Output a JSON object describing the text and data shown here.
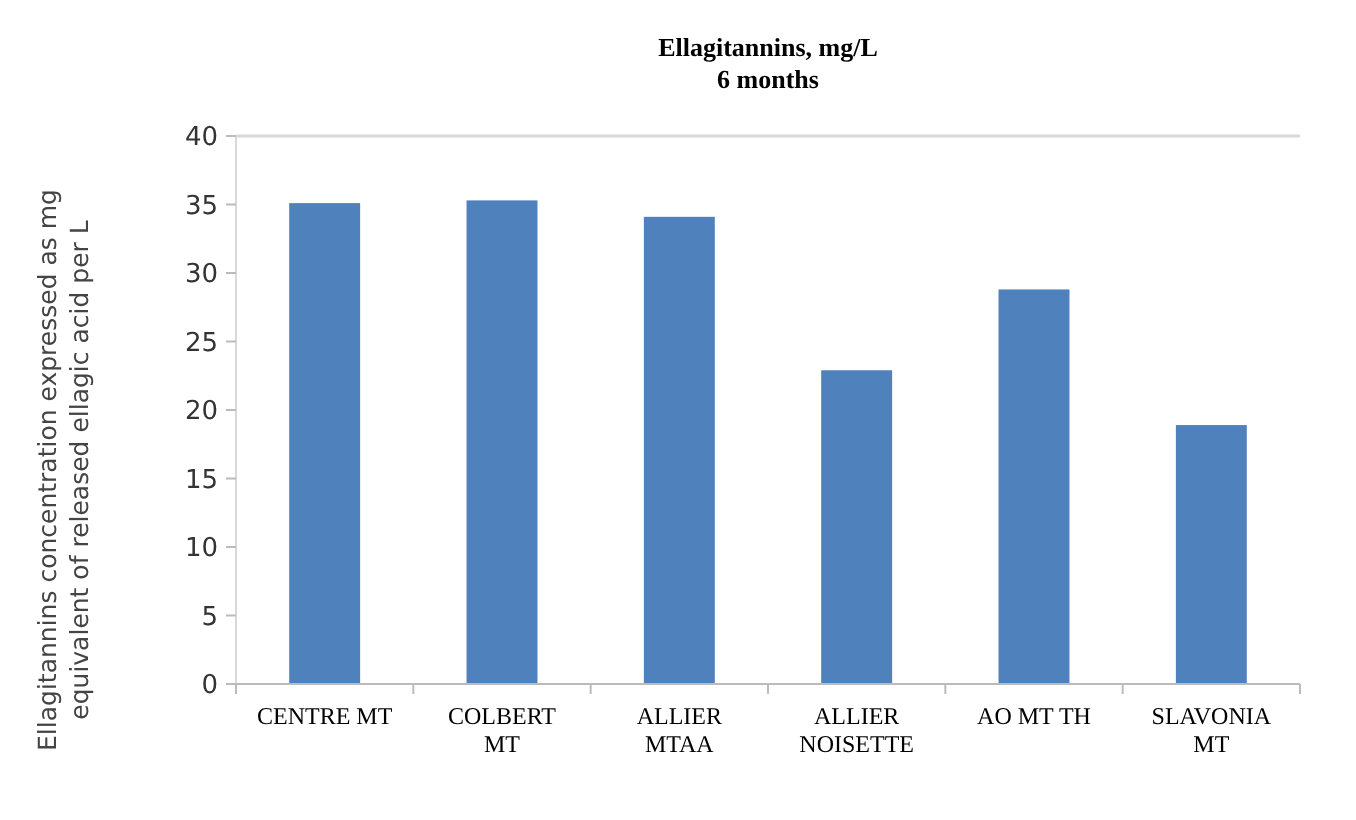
{
  "chart_data": {
    "type": "bar",
    "title": "Ellagitannins, mg/L\n6 months",
    "ylabel": "Ellagitannins concentration expressed as mg\nequivalent of released ellagic acid per L",
    "categories": [
      "CENTRE MT",
      "COLBERT\nMT",
      "ALLIER\nMTAA",
      "ALLIER\nNOISETTE",
      "AO MT TH",
      "SLAVONIA\nMT"
    ],
    "values": [
      35.1,
      35.3,
      34.1,
      22.9,
      28.8,
      18.9
    ],
    "color": "#4f81bd",
    "ylim": [
      0,
      40
    ],
    "yticks": [
      0,
      5,
      10,
      15,
      20,
      25,
      30,
      35,
      40
    ],
    "grid": false
  }
}
